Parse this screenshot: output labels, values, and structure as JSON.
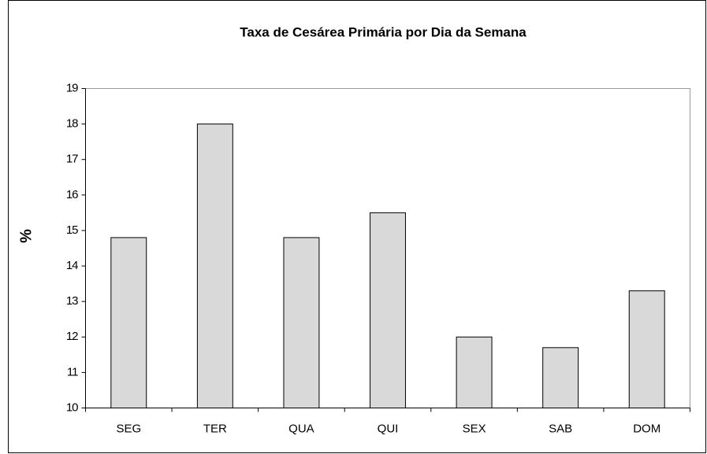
{
  "chart_data": {
    "type": "bar",
    "title": "Taxa de Cesárea Primária por Dia da Semana",
    "y_label": "%",
    "categories": [
      "SEG",
      "TER",
      "QUA",
      "QUI",
      "SEX",
      "SAB",
      "DOM"
    ],
    "values": [
      14.8,
      18.0,
      14.8,
      15.5,
      12.0,
      11.7,
      13.3
    ],
    "color": "#d9d9d9",
    "ylim": [
      10,
      19
    ],
    "yticks": [
      10,
      11,
      12,
      13,
      14,
      15,
      16,
      17,
      18,
      19
    ],
    "grid": false
  }
}
